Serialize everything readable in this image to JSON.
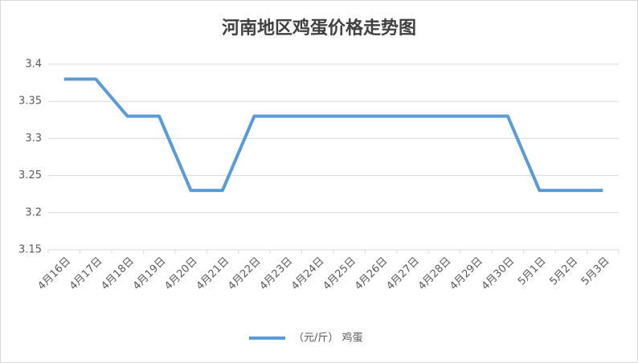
{
  "chart_data": {
    "type": "line",
    "title": "河南地区鸡蛋价格走势图",
    "categories": [
      "4月16日",
      "4月17日",
      "4月18日",
      "4月19日",
      "4月20日",
      "4月21日",
      "4月22日",
      "4月23日",
      "4月24日",
      "4月25日",
      "4月26日",
      "4月27日",
      "4月28日",
      "4月29日",
      "4月30日",
      "5月1日",
      "5月2日",
      "5月3日"
    ],
    "series": [
      {
        "name": "（元/斤） 鸡蛋",
        "color": "#5b9bd5",
        "values": [
          3.38,
          3.38,
          3.33,
          3.33,
          3.23,
          3.23,
          3.33,
          3.33,
          3.33,
          3.33,
          3.33,
          3.33,
          3.33,
          3.33,
          3.33,
          3.23,
          3.23,
          3.23
        ]
      }
    ],
    "ylim": [
      3.15,
      3.4
    ],
    "yticks": [
      3.15,
      3.2,
      3.25,
      3.3,
      3.35,
      3.4
    ],
    "grid": true,
    "legend": "bottom"
  }
}
